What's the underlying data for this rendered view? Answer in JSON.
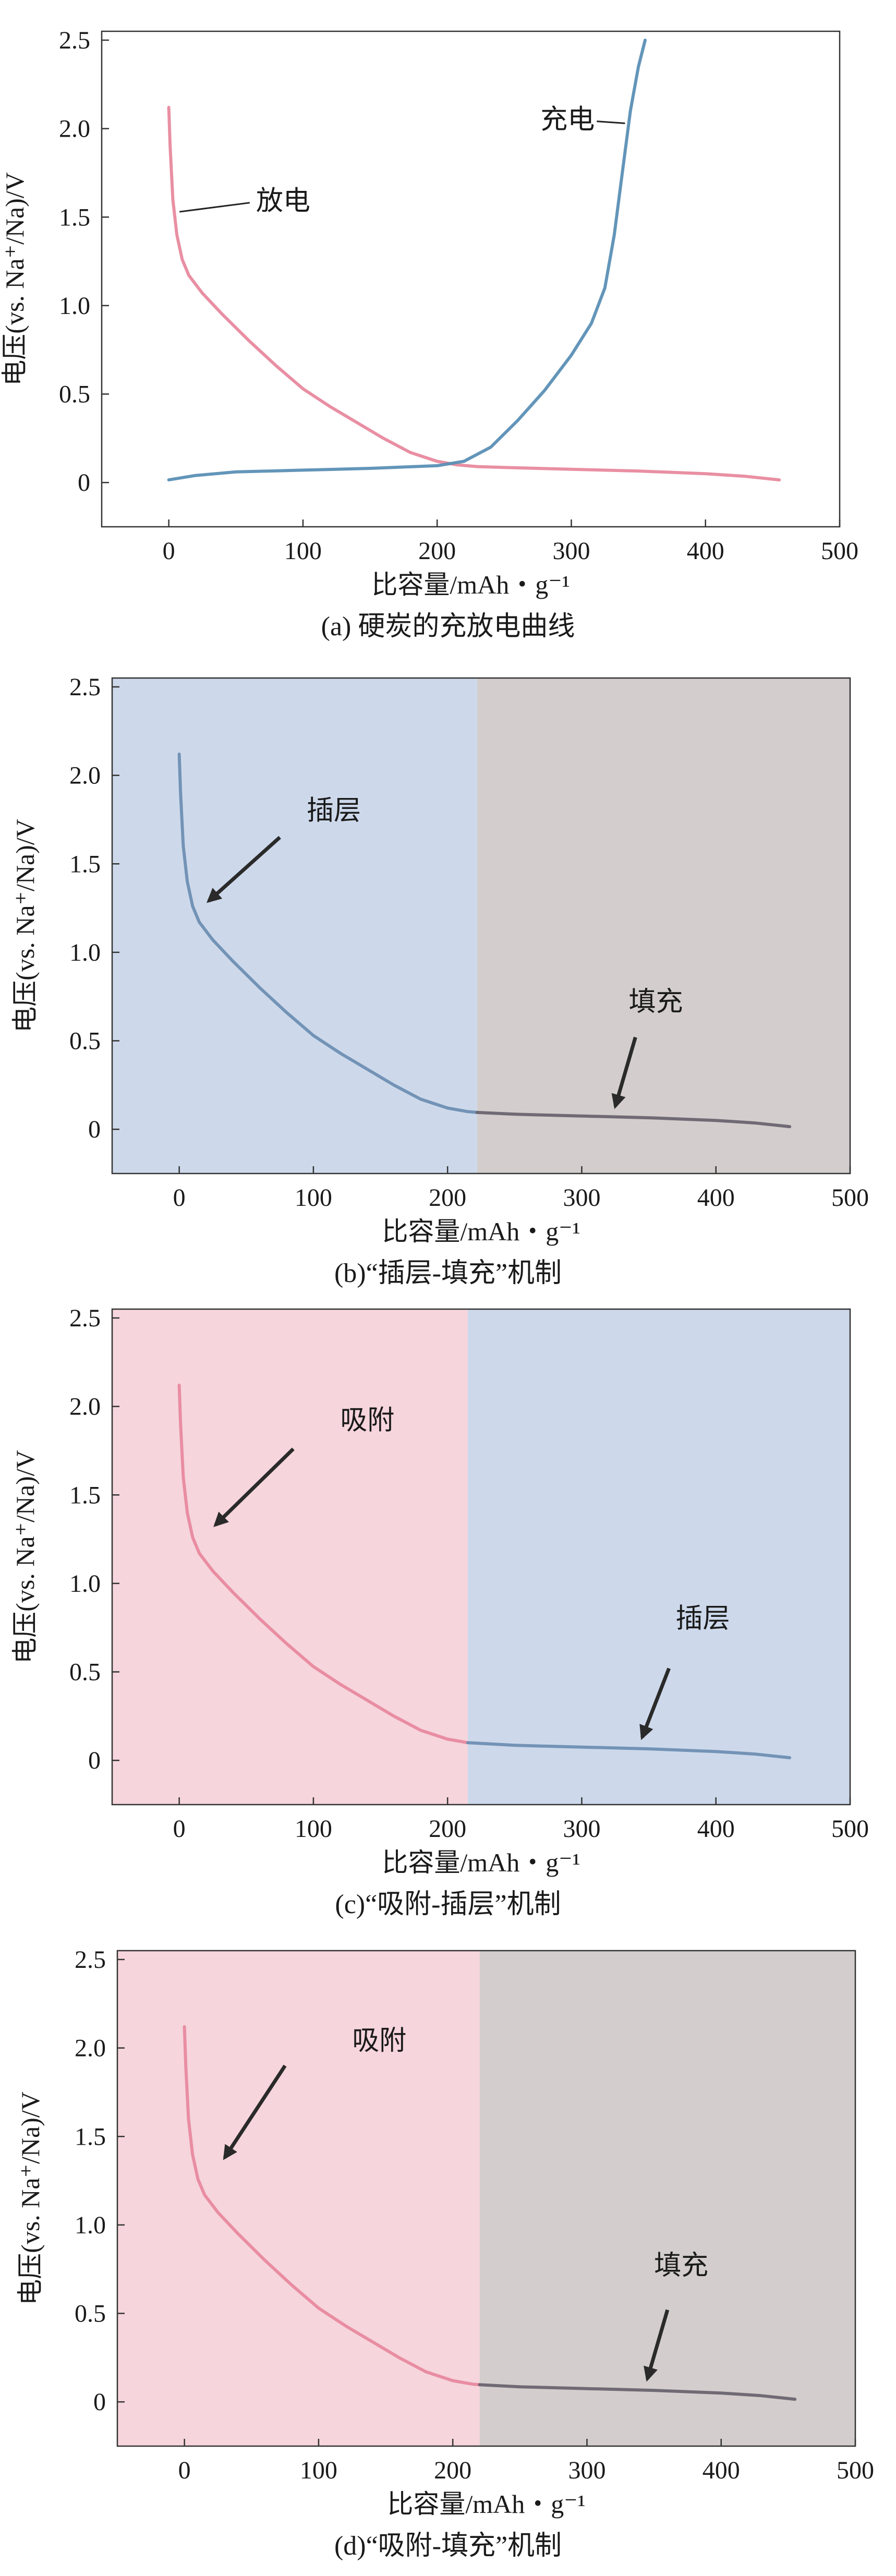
{
  "chart_data": [
    {
      "type": "line",
      "title": "",
      "caption": "(a) 硬炭的充放电曲线",
      "xlabel": "比容量/mAh・g⁻¹",
      "ylabel": "电压(vs. Na⁺/Na)/V",
      "xlim": [
        -50,
        500
      ],
      "ylim": [
        -0.25,
        2.55
      ],
      "xticks": [
        0,
        100,
        200,
        300,
        400,
        500
      ],
      "yticks": [
        0,
        0.5,
        1.0,
        1.5,
        2.0,
        2.5
      ],
      "xtick_labels": [
        "0",
        "100",
        "200",
        "300",
        "400",
        "500"
      ],
      "ytick_labels": [
        "0",
        "0.5",
        "1.0",
        "1.5",
        "2.0",
        "2.5"
      ],
      "regions": [],
      "series": [
        {
          "name": "放电",
          "color": "#e8899e",
          "x": [
            0,
            1,
            3,
            6,
            10,
            15,
            25,
            40,
            60,
            80,
            100,
            120,
            140,
            160,
            180,
            200,
            215,
            230,
            250,
            300,
            350,
            400,
            430,
            455
          ],
          "y": [
            2.12,
            1.9,
            1.6,
            1.4,
            1.26,
            1.17,
            1.07,
            0.95,
            0.8,
            0.66,
            0.53,
            0.43,
            0.34,
            0.25,
            0.17,
            0.12,
            0.1,
            0.09,
            0.085,
            0.075,
            0.065,
            0.05,
            0.035,
            0.015
          ],
          "annotation": {
            "text": "放电",
            "at_x": 8,
            "at_y": 1.53,
            "text_x": 65,
            "text_y": 1.54
          }
        },
        {
          "name": "充电",
          "color": "#5b8fb5",
          "x": [
            0,
            20,
            50,
            100,
            150,
            200,
            220,
            240,
            260,
            280,
            300,
            315,
            325,
            332,
            338,
            344,
            350,
            355
          ],
          "y": [
            0.015,
            0.04,
            0.06,
            0.07,
            0.08,
            0.095,
            0.12,
            0.2,
            0.35,
            0.52,
            0.72,
            0.9,
            1.1,
            1.4,
            1.75,
            2.1,
            2.35,
            2.5
          ],
          "annotation": {
            "text": "充电",
            "at_x": 340,
            "at_y": 2.03,
            "text_x": 277,
            "text_y": 2.0
          }
        }
      ],
      "arrows": []
    },
    {
      "type": "line",
      "title": "",
      "caption": "(b)“插层-填充”机制",
      "xlabel": "比容量/mAh・g⁻¹",
      "ylabel": "电压(vs. Na⁺/Na)/V",
      "xlim": [
        -50,
        500
      ],
      "ylim": [
        -0.25,
        2.55
      ],
      "xticks": [
        0,
        100,
        200,
        300,
        400,
        500
      ],
      "yticks": [
        0,
        0.5,
        1.0,
        1.5,
        2.0,
        2.5
      ],
      "xtick_labels": [
        "0",
        "100",
        "200",
        "300",
        "400",
        "500"
      ],
      "ytick_labels": [
        "0",
        "0.5",
        "1.0",
        "1.5",
        "2.0",
        "2.5"
      ],
      "regions": [
        {
          "x_start": -50,
          "x_end": 222,
          "color": "#cdd9eb"
        },
        {
          "x_start": 222,
          "x_end": 500,
          "color": "#d3cdcd"
        }
      ],
      "series": [
        {
          "name": "插层段",
          "color": "#6e8fb3",
          "x": [
            0,
            1,
            3,
            6,
            10,
            15,
            25,
            40,
            60,
            80,
            100,
            120,
            140,
            160,
            180,
            200,
            215,
            222
          ],
          "y": [
            2.12,
            1.9,
            1.6,
            1.4,
            1.26,
            1.17,
            1.07,
            0.95,
            0.8,
            0.66,
            0.53,
            0.43,
            0.34,
            0.25,
            0.17,
            0.12,
            0.1,
            0.095
          ],
          "annotation": null
        },
        {
          "name": "填充段",
          "color": "#6a6470",
          "x": [
            222,
            250,
            300,
            350,
            400,
            430,
            455
          ],
          "y": [
            0.095,
            0.085,
            0.075,
            0.065,
            0.05,
            0.035,
            0.015
          ],
          "annotation": null
        }
      ],
      "arrows": [
        {
          "text": "插层",
          "from_x": 75,
          "from_y": 1.65,
          "to_x": 22,
          "to_y": 1.29,
          "text_x": 95,
          "text_y": 1.75
        },
        {
          "text": "填充",
          "from_x": 340,
          "from_y": 0.52,
          "to_x": 325,
          "to_y": 0.13,
          "text_x": 335,
          "text_y": 0.67
        }
      ]
    },
    {
      "type": "line",
      "title": "",
      "caption": "(c)“吸附-插层”机制",
      "xlabel": "比容量/mAh・g⁻¹",
      "ylabel": "电压(vs. Na⁺/Na)/V",
      "xlim": [
        -50,
        500
      ],
      "ylim": [
        -0.25,
        2.55
      ],
      "xticks": [
        0,
        100,
        200,
        300,
        400,
        500
      ],
      "yticks": [
        0,
        0.5,
        1.0,
        1.5,
        2.0,
        2.5
      ],
      "xtick_labels": [
        "0",
        "100",
        "200",
        "300",
        "400",
        "500"
      ],
      "ytick_labels": [
        "0",
        "0.5",
        "1.0",
        "1.5",
        "2.0",
        "2.5"
      ],
      "regions": [
        {
          "x_start": -50,
          "x_end": 215,
          "color": "#f6d5dc"
        },
        {
          "x_start": 215,
          "x_end": 500,
          "color": "#cdd9eb"
        }
      ],
      "series": [
        {
          "name": "吸附段",
          "color": "#e8899e",
          "x": [
            0,
            1,
            3,
            6,
            10,
            15,
            25,
            40,
            60,
            80,
            100,
            120,
            140,
            160,
            180,
            200,
            215
          ],
          "y": [
            2.12,
            1.9,
            1.6,
            1.4,
            1.26,
            1.17,
            1.07,
            0.95,
            0.8,
            0.66,
            0.53,
            0.43,
            0.34,
            0.25,
            0.17,
            0.12,
            0.1
          ],
          "annotation": null
        },
        {
          "name": "插层段",
          "color": "#6e8fb3",
          "x": [
            215,
            250,
            300,
            350,
            400,
            430,
            455
          ],
          "y": [
            0.1,
            0.085,
            0.075,
            0.065,
            0.05,
            0.035,
            0.015
          ],
          "annotation": null
        }
      ],
      "arrows": [
        {
          "text": "吸附",
          "from_x": 85,
          "from_y": 1.76,
          "to_x": 27,
          "to_y": 1.33,
          "text_x": 120,
          "text_y": 1.87
        },
        {
          "text": "插层",
          "from_x": 365,
          "from_y": 0.52,
          "to_x": 345,
          "to_y": 0.13,
          "text_x": 370,
          "text_y": 0.75
        }
      ]
    },
    {
      "type": "line",
      "title": "",
      "caption": "(d)“吸附-填充”机制",
      "xlabel": "比容量/mAh・g⁻¹",
      "ylabel": "电压(vs. Na⁺/Na)/V",
      "xlim": [
        -50,
        500
      ],
      "ylim": [
        -0.25,
        2.55
      ],
      "xticks": [
        0,
        100,
        200,
        300,
        400,
        500
      ],
      "yticks": [
        0,
        0.5,
        1.0,
        1.5,
        2.0,
        2.5
      ],
      "xtick_labels": [
        "0",
        "100",
        "200",
        "300",
        "400",
        "500"
      ],
      "ytick_labels": [
        "0",
        "0.5",
        "1.0",
        "1.5",
        "2.0",
        "2.5"
      ],
      "regions": [
        {
          "x_start": -50,
          "x_end": 220,
          "color": "#f6d5dc"
        },
        {
          "x_start": 220,
          "x_end": 500,
          "color": "#d3cdcd"
        }
      ],
      "series": [
        {
          "name": "吸附段",
          "color": "#e8899e",
          "x": [
            0,
            1,
            3,
            6,
            10,
            15,
            25,
            40,
            60,
            80,
            100,
            120,
            140,
            160,
            180,
            200,
            215,
            220
          ],
          "y": [
            2.12,
            1.9,
            1.6,
            1.4,
            1.26,
            1.17,
            1.07,
            0.95,
            0.8,
            0.66,
            0.53,
            0.43,
            0.34,
            0.25,
            0.17,
            0.12,
            0.1,
            0.097
          ],
          "annotation": null
        },
        {
          "name": "填充段",
          "color": "#6a6470",
          "x": [
            220,
            250,
            300,
            350,
            400,
            430,
            455
          ],
          "y": [
            0.097,
            0.085,
            0.075,
            0.065,
            0.05,
            0.035,
            0.015
          ],
          "annotation": null
        }
      ],
      "arrows": [
        {
          "text": "吸附",
          "from_x": 75,
          "from_y": 1.9,
          "to_x": 30,
          "to_y": 1.38,
          "text_x": 125,
          "text_y": 1.99
        },
        {
          "text": "填充",
          "from_x": 360,
          "from_y": 0.52,
          "to_x": 345,
          "to_y": 0.13,
          "text_x": 350,
          "text_y": 0.72
        }
      ]
    }
  ]
}
